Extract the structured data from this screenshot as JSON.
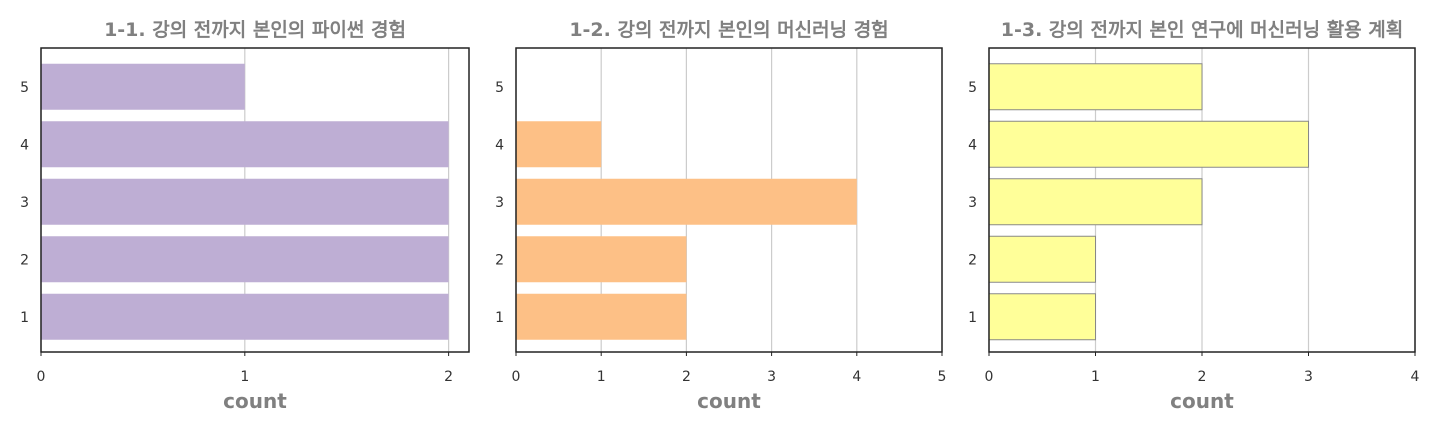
{
  "chart_data": [
    {
      "type": "bar",
      "orientation": "horizontal",
      "title": "1-1. 강의 전까지 본인의 파이썬 경험",
      "xlabel": "count",
      "ylabel": "",
      "categories": [
        "1",
        "2",
        "3",
        "4",
        "5"
      ],
      "values": [
        2,
        2,
        2,
        2,
        1
      ],
      "xlim": [
        0,
        2.1
      ],
      "xticks": [
        "0",
        "1",
        "2"
      ],
      "grid": "vertical",
      "color": "#BEAED4",
      "edge_color": "none"
    },
    {
      "type": "bar",
      "orientation": "horizontal",
      "title": "1-2. 강의 전까지 본인의 머신러닝 경험",
      "xlabel": "count",
      "ylabel": "",
      "categories": [
        "1",
        "2",
        "3",
        "4",
        "5"
      ],
      "values": [
        2,
        2,
        4,
        1,
        0
      ],
      "xlim": [
        0,
        5
      ],
      "xticks": [
        "0",
        "1",
        "2",
        "3",
        "4",
        "5"
      ],
      "grid": "vertical",
      "color": "#FDC086",
      "edge_color": "none"
    },
    {
      "type": "bar",
      "orientation": "horizontal",
      "title": "1-3. 강의 전까지 본인 연구에 머신러닝 활용 계획",
      "xlabel": "count",
      "ylabel": "",
      "categories": [
        "1",
        "2",
        "3",
        "4",
        "5"
      ],
      "values": [
        1,
        1,
        2,
        3,
        2
      ],
      "xlim": [
        0,
        4
      ],
      "xticks": [
        "0",
        "1",
        "2",
        "3",
        "4"
      ],
      "grid": "vertical",
      "color": "#FFFF99",
      "edge_color": "#888888"
    }
  ]
}
